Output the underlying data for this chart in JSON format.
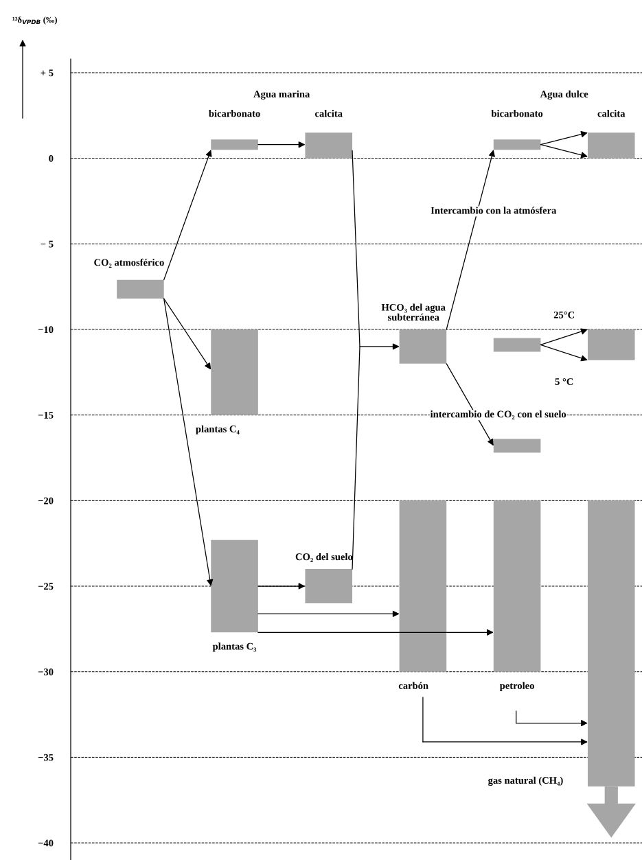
{
  "chart_data": {
    "type": "bar",
    "ylabel": "¹³δ$_{VPDB}$ (‰)",
    "categories": [
      null,
      null,
      null,
      null,
      null,
      null
    ],
    "series": [
      {
        "name": "CO₂ atmosférico",
        "color": "#a6a6a6",
        "values": [
          1.1,
          null,
          null,
          null,
          null,
          null
        ],
        "base": [
          -8.2,
          null,
          null,
          null,
          null,
          null
        ]
      },
      {
        "name": "bicarbonato",
        "color": "#a6a6a6",
        "values": [
          null,
          0.6,
          null,
          null,
          null,
          null
        ],
        "base": [
          null,
          0.5,
          null,
          null,
          null,
          null
        ]
      },
      {
        "name": "calcita",
        "color": "#a6a6a6",
        "values": [
          null,
          null,
          1.5,
          null,
          null,
          null
        ],
        "base": [
          null,
          null,
          0,
          null,
          null,
          null
        ]
      },
      {
        "name": "plantas C₄",
        "color": "#a6a6a6",
        "values": [
          null,
          5,
          null,
          null,
          null,
          null
        ],
        "base": [
          null,
          -15,
          null,
          null,
          null,
          null
        ]
      },
      {
        "name": "plantas C₃",
        "color": "#a6a6a6",
        "values": [
          null,
          5.4,
          null,
          null,
          null,
          null
        ],
        "base": [
          null,
          -27.7,
          null,
          null,
          null,
          null
        ]
      },
      {
        "name": "CO₂ del suelo",
        "color": "#a6a6a6",
        "values": [
          null,
          null,
          2,
          null,
          null,
          null
        ],
        "base": [
          null,
          null,
          -26,
          null,
          null,
          null
        ]
      },
      {
        "name": "HCO₃ del agua\nsubterránea",
        "color": "#a6a6a6",
        "values": [
          null,
          null,
          null,
          2,
          null,
          null
        ],
        "base": [
          null,
          null,
          null,
          -12,
          null,
          null
        ]
      },
      {
        "name": "carbón",
        "color": "#a6a6a6",
        "values": [
          null,
          null,
          null,
          10,
          null,
          null
        ],
        "base": [
          null,
          null,
          null,
          -30,
          null,
          null
        ]
      },
      {
        "name": "bicarbonato",
        "color": "#a6a6a6",
        "values": [
          null,
          null,
          null,
          null,
          0.6,
          null
        ],
        "base": [
          null,
          null,
          null,
          null,
          0.5,
          null
        ]
      },
      {
        "color": "#a6a6a6",
        "values": [
          null,
          null,
          null,
          null,
          0.8,
          null
        ],
        "base": [
          null,
          null,
          null,
          null,
          -11.3,
          null
        ]
      },
      {
        "color": "#a6a6a6",
        "values": [
          null,
          null,
          null,
          null,
          0.8,
          null
        ],
        "base": [
          null,
          null,
          null,
          null,
          -17.2,
          null
        ]
      },
      {
        "name": "petroleo",
        "color": "#a6a6a6",
        "values": [
          null,
          null,
          null,
          null,
          10,
          null
        ],
        "base": [
          null,
          null,
          null,
          null,
          -30,
          null
        ]
      },
      {
        "name": "calcita",
        "color": "#a6a6a6",
        "values": [
          null,
          null,
          null,
          null,
          null,
          1.5
        ],
        "base": [
          null,
          null,
          null,
          null,
          null,
          0
        ]
      },
      {
        "color": "#a6a6a6",
        "values": [
          null,
          null,
          null,
          null,
          null,
          1.8
        ],
        "base": [
          null,
          null,
          null,
          null,
          null,
          -11.8
        ]
      },
      {
        "name": "gas natural (CH₄)",
        "color": "#a6a6a6",
        "values": [
          null,
          null,
          null,
          null,
          null,
          16.7
        ],
        "base": [
          null,
          null,
          null,
          null,
          null,
          -36.7
        ]
      }
    ],
    "annotations": [
      "Agua marina",
      "Agua dulce",
      "Intercambio con la atmósfera",
      "25°C",
      "5 °C",
      "intercambio de CO₂ con el suelo"
    ],
    "ylim": [
      -41,
      5.8
    ],
    "yticks": [
      {
        "value": 5,
        "label": "+ 5"
      },
      0,
      {
        "value": -5,
        "label": "− 5"
      },
      {
        "value": -10,
        "label": "−10"
      },
      {
        "value": -15,
        "label": "−15"
      },
      {
        "value": -20,
        "label": "−20"
      },
      {
        "value": -25,
        "label": "−25"
      },
      {
        "value": -30,
        "label": "−30"
      },
      {
        "value": -35,
        "label": "−35"
      },
      {
        "value": -40,
        "label": "−40"
      }
    ],
    "grid": "y",
    "line_style": "dashed",
    "tick_labels": "y"
  }
}
